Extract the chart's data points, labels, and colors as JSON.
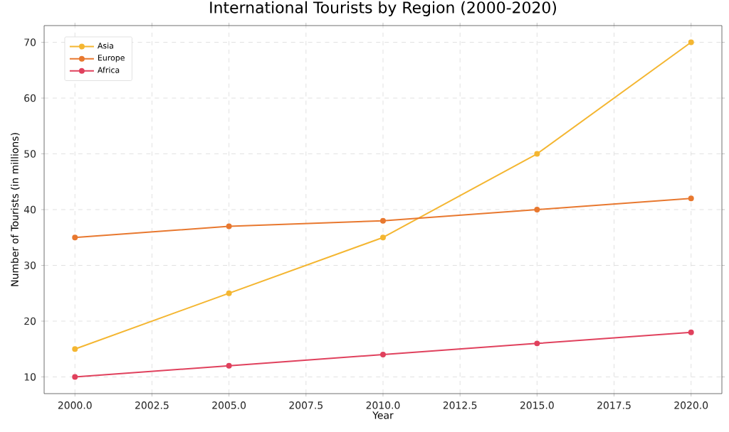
{
  "chart_data": {
    "type": "line",
    "title": "International Tourists by Region (2000-2020)",
    "xlabel": "Year",
    "ylabel": "Number of Tourists (in millions)",
    "x": [
      2000,
      2005,
      2010,
      2015,
      2020
    ],
    "series": [
      {
        "name": "Asia",
        "color": "#f4b631",
        "values": [
          15,
          25,
          35,
          50,
          70
        ]
      },
      {
        "name": "Europe",
        "color": "#e8782f",
        "values": [
          35,
          37,
          38,
          40,
          42
        ]
      },
      {
        "name": "Africa",
        "color": "#e0415d",
        "values": [
          10,
          12,
          14,
          16,
          18
        ]
      }
    ],
    "xlim": [
      1999,
      2021
    ],
    "ylim": [
      7,
      73
    ],
    "xticks": [
      {
        "value": 2000,
        "label": "2000.0"
      },
      {
        "value": 2002.5,
        "label": "2002.5"
      },
      {
        "value": 2005,
        "label": "2005.0"
      },
      {
        "value": 2007.5,
        "label": "2007.5"
      },
      {
        "value": 2010,
        "label": "2010.0"
      },
      {
        "value": 2012.5,
        "label": "2012.5"
      },
      {
        "value": 2015,
        "label": "2015.0"
      },
      {
        "value": 2017.5,
        "label": "2017.5"
      },
      {
        "value": 2020,
        "label": "2020.0"
      }
    ],
    "yticks": [
      10,
      20,
      30,
      40,
      50,
      60,
      70
    ],
    "grid": true,
    "legend": "top left",
    "marker": "circle",
    "line_style": "solid"
  }
}
